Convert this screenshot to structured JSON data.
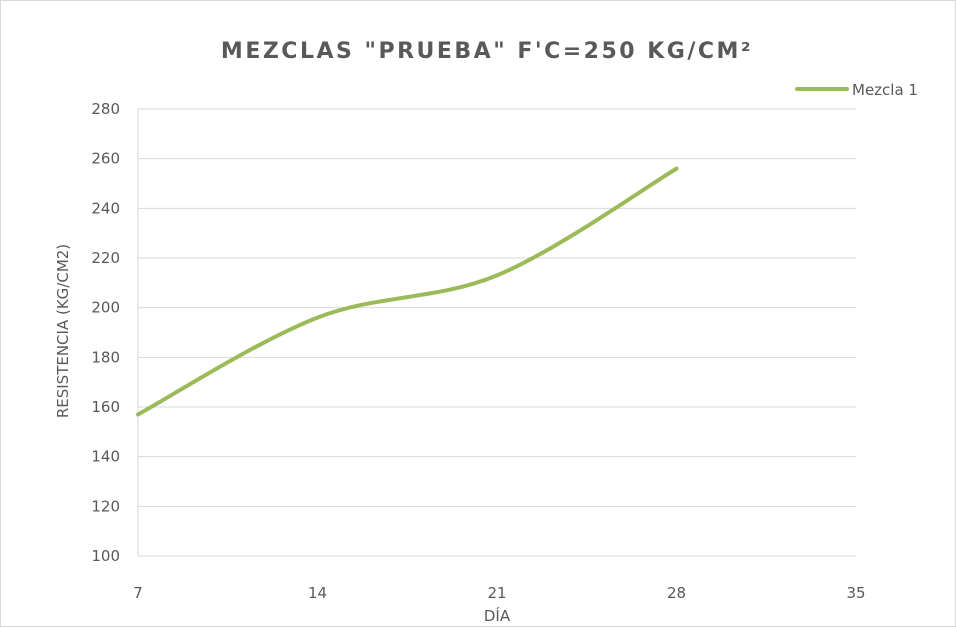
{
  "chart_data": {
    "type": "line",
    "title": "MEZCLAS \"PRUEBA\" F'C=250 KG/CM²",
    "xlabel": "DÍA",
    "ylabel": "RESISTENCIA (KG/CM2)",
    "x_ticks": [
      "7",
      "14",
      "21",
      "28",
      "35"
    ],
    "y_ticks": [
      "100",
      "120",
      "140",
      "160",
      "180",
      "200",
      "220",
      "240",
      "260",
      "280"
    ],
    "xlim": [
      7,
      35
    ],
    "ylim": [
      100,
      280
    ],
    "grid": true,
    "legend_position": "top-right",
    "series": [
      {
        "name": "Mezcla 1",
        "color": "#9bbb59",
        "smooth": true,
        "x": [
          7,
          14,
          21,
          28
        ],
        "y": [
          157,
          196,
          213,
          256
        ]
      }
    ]
  }
}
